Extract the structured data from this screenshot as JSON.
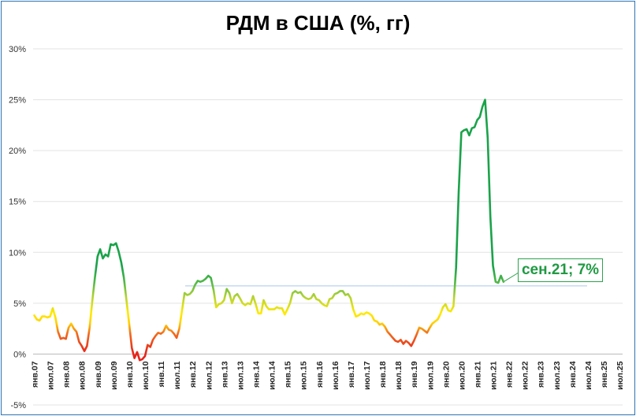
{
  "chart_data": {
    "type": "line",
    "title": "РДМ в США (%, гг)",
    "ylim": [
      -5,
      30
    ],
    "yticks": [
      -5,
      0,
      5,
      10,
      15,
      20,
      25,
      30
    ],
    "ytick_labels": [
      "-5%",
      "0%",
      "5%",
      "10%",
      "15%",
      "20%",
      "25%",
      "30%"
    ],
    "x_start": "2007-01",
    "x_end": "2025-07",
    "xtick_labels": [
      "янв.07",
      "июл.07",
      "янв.08",
      "июл.08",
      "янв.09",
      "июл.09",
      "янв.10",
      "июл.10",
      "янв.11",
      "июл.11",
      "янв.12",
      "июл.12",
      "янв.13",
      "июл.13",
      "янв.14",
      "июл.14",
      "янв.15",
      "июл.15",
      "янв.16",
      "июл.16",
      "янв.17",
      "июл.17",
      "янв.18",
      "июл.18",
      "янв.19",
      "июл.19",
      "янв.20",
      "июл.20",
      "янв.21",
      "июл.21",
      "янв.22",
      "июл.22",
      "янв.23",
      "июл.23",
      "янв.24",
      "июл.24",
      "янв.25",
      "июл.25"
    ],
    "reference_line": 6.7,
    "annotation": "сен.21; 7%",
    "grid": "horizontal",
    "colors": {
      "low": "#e6241c",
      "mid": "#ffea00",
      "high": "#1aa34a"
    },
    "series": [
      {
        "values": [
          [
            0,
            3.8
          ],
          [
            1,
            3.4
          ],
          [
            2,
            3.3
          ],
          [
            3,
            3.7
          ],
          [
            4,
            3.7
          ],
          [
            5,
            3.6
          ],
          [
            6,
            3.7
          ],
          [
            7,
            4.5
          ],
          [
            8,
            3.6
          ],
          [
            9,
            2.2
          ],
          [
            10,
            1.5
          ],
          [
            11,
            1.6
          ],
          [
            12,
            1.5
          ],
          [
            13,
            2.6
          ],
          [
            14,
            3.0
          ],
          [
            15,
            2.5
          ],
          [
            16,
            2.2
          ],
          [
            17,
            1.2
          ],
          [
            18,
            0.8
          ],
          [
            19,
            0.3
          ],
          [
            20,
            0.8
          ],
          [
            21,
            2.6
          ],
          [
            22,
            5.2
          ],
          [
            23,
            7.5
          ],
          [
            24,
            9.6
          ],
          [
            25,
            10.3
          ],
          [
            26,
            9.4
          ],
          [
            27,
            9.8
          ],
          [
            28,
            9.6
          ],
          [
            29,
            10.8
          ],
          [
            30,
            10.7
          ],
          [
            31,
            10.9
          ],
          [
            32,
            10.1
          ],
          [
            33,
            9.0
          ],
          [
            34,
            7.5
          ],
          [
            35,
            5.2
          ],
          [
            36,
            3.0
          ],
          [
            37,
            0.6
          ],
          [
            38,
            -0.4
          ],
          [
            39,
            0.2
          ],
          [
            40,
            -0.6
          ],
          [
            41,
            -0.5
          ],
          [
            42,
            -0.2
          ],
          [
            43,
            0.9
          ],
          [
            44,
            0.7
          ],
          [
            45,
            1.4
          ],
          [
            46,
            1.8
          ],
          [
            47,
            2.1
          ],
          [
            48,
            2.0
          ],
          [
            49,
            2.2
          ],
          [
            50,
            2.8
          ],
          [
            51,
            2.4
          ],
          [
            52,
            2.3
          ],
          [
            53,
            2.0
          ],
          [
            54,
            1.6
          ],
          [
            55,
            2.5
          ],
          [
            56,
            4.2
          ],
          [
            57,
            6.0
          ],
          [
            58,
            5.8
          ],
          [
            59,
            5.9
          ],
          [
            60,
            6.2
          ],
          [
            61,
            6.8
          ],
          [
            62,
            7.2
          ],
          [
            63,
            7.1
          ],
          [
            64,
            7.2
          ],
          [
            65,
            7.4
          ],
          [
            66,
            7.7
          ],
          [
            67,
            7.5
          ],
          [
            68,
            6.3
          ],
          [
            69,
            4.6
          ],
          [
            70,
            4.9
          ],
          [
            71,
            5.0
          ],
          [
            72,
            5.3
          ],
          [
            73,
            6.4
          ],
          [
            74,
            6.0
          ],
          [
            75,
            5.0
          ],
          [
            76,
            5.7
          ],
          [
            77,
            5.9
          ],
          [
            78,
            5.5
          ],
          [
            79,
            5.0
          ],
          [
            80,
            4.8
          ],
          [
            81,
            5.0
          ],
          [
            82,
            4.9
          ],
          [
            83,
            5.7
          ],
          [
            84,
            4.9
          ],
          [
            85,
            4.0
          ],
          [
            86,
            4.0
          ],
          [
            87,
            5.3
          ],
          [
            88,
            4.7
          ],
          [
            89,
            4.4
          ],
          [
            90,
            4.4
          ],
          [
            91,
            4.4
          ],
          [
            92,
            4.6
          ],
          [
            93,
            4.5
          ],
          [
            94,
            4.5
          ],
          [
            95,
            3.9
          ],
          [
            96,
            4.4
          ],
          [
            97,
            5.0
          ],
          [
            98,
            6.0
          ],
          [
            99,
            6.2
          ],
          [
            100,
            6.0
          ],
          [
            101,
            6.1
          ],
          [
            102,
            5.7
          ],
          [
            103,
            5.5
          ],
          [
            104,
            5.4
          ],
          [
            105,
            5.5
          ],
          [
            106,
            5.9
          ],
          [
            107,
            5.4
          ],
          [
            108,
            5.3
          ],
          [
            109,
            5.0
          ],
          [
            110,
            4.8
          ],
          [
            111,
            4.7
          ],
          [
            112,
            5.4
          ],
          [
            113,
            5.5
          ],
          [
            114,
            5.9
          ],
          [
            115,
            6.0
          ],
          [
            116,
            6.2
          ],
          [
            117,
            6.2
          ],
          [
            118,
            5.8
          ],
          [
            119,
            5.9
          ],
          [
            120,
            5.5
          ],
          [
            121,
            4.4
          ],
          [
            122,
            3.7
          ],
          [
            123,
            3.8
          ],
          [
            124,
            4.0
          ],
          [
            125,
            3.9
          ],
          [
            126,
            4.1
          ],
          [
            127,
            4.0
          ],
          [
            128,
            3.8
          ],
          [
            129,
            3.3
          ],
          [
            130,
            3.2
          ],
          [
            131,
            2.9
          ],
          [
            132,
            3.0
          ],
          [
            133,
            2.7
          ],
          [
            134,
            2.2
          ],
          [
            135,
            1.9
          ],
          [
            136,
            1.6
          ],
          [
            137,
            1.3
          ],
          [
            138,
            1.2
          ],
          [
            139,
            1.4
          ],
          [
            140,
            1.0
          ],
          [
            141,
            1.3
          ],
          [
            142,
            1.1
          ],
          [
            143,
            0.8
          ],
          [
            144,
            1.3
          ],
          [
            145,
            1.9
          ],
          [
            146,
            2.6
          ],
          [
            147,
            2.5
          ],
          [
            148,
            2.3
          ],
          [
            149,
            2.1
          ],
          [
            150,
            2.6
          ],
          [
            151,
            3.0
          ],
          [
            152,
            3.2
          ],
          [
            153,
            3.4
          ],
          [
            154,
            3.9
          ],
          [
            155,
            4.6
          ],
          [
            156,
            4.9
          ],
          [
            157,
            4.3
          ],
          [
            158,
            4.2
          ],
          [
            159,
            4.7
          ],
          [
            160,
            8.5
          ],
          [
            161,
            15.9
          ],
          [
            162,
            21.8
          ],
          [
            163,
            22.0
          ],
          [
            164,
            22.1
          ],
          [
            165,
            21.5
          ],
          [
            166,
            22.2
          ],
          [
            167,
            22.3
          ],
          [
            168,
            23.0
          ],
          [
            169,
            23.3
          ],
          [
            170,
            24.3
          ],
          [
            171,
            25.0
          ],
          [
            172,
            21.3
          ],
          [
            173,
            13.5
          ],
          [
            174,
            8.7
          ],
          [
            175,
            7.1
          ],
          [
            176,
            7.0
          ],
          [
            177,
            7.7
          ],
          [
            178,
            7.1
          ]
        ]
      }
    ]
  }
}
